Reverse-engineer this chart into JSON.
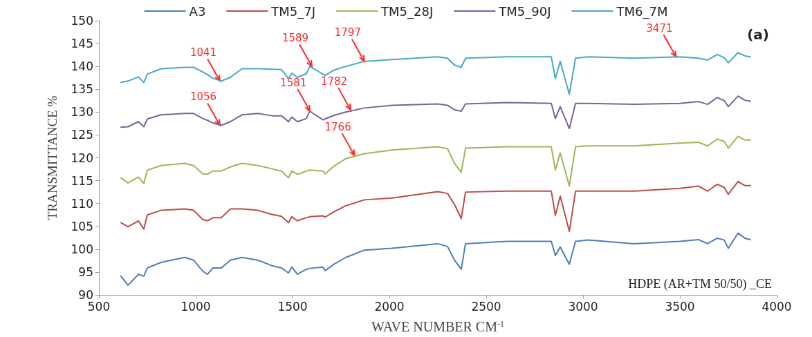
{
  "chart_data": {
    "type": "line",
    "xlabel": "WAVE NUMBER CM$^{-1}$",
    "ylabel": "TRANSMITTANCE %",
    "xlim": [
      500,
      4000
    ],
    "xticks": [
      500,
      1000,
      1500,
      2000,
      2500,
      3000,
      3500,
      4000
    ],
    "ylim": [
      90,
      150
    ],
    "yticks": [
      90,
      95,
      100,
      105,
      110,
      115,
      120,
      125,
      130,
      135,
      140,
      145,
      150
    ],
    "grid": false,
    "legend": "top",
    "marker": "none",
    "line_style": "solid",
    "x": [
      614,
      650,
      704,
      732,
      750,
      821,
      943,
      989,
      1036,
      1061,
      1089,
      1132,
      1179,
      1239,
      1321,
      1393,
      1443,
      1479,
      1496,
      1525,
      1571,
      1589,
      1657,
      1668,
      1714,
      1775,
      1871,
      2014,
      2250,
      2300,
      2336,
      2371,
      2393,
      2607,
      2836,
      2857,
      2882,
      2929,
      2961,
      3025,
      3264,
      3500,
      3596,
      3643,
      3693,
      3729,
      3750,
      3800,
      3836,
      3864
    ],
    "series": [
      {
        "name": "A3",
        "color": "#4a7ebb",
        "values": [
          94.1,
          92.1,
          94.5,
          94.1,
          95.9,
          97.1,
          98.2,
          97.6,
          95.2,
          94.5,
          95.9,
          95.9,
          97.6,
          98.2,
          97.6,
          96.4,
          95.9,
          94.8,
          96.1,
          94.5,
          95.6,
          95.8,
          96.1,
          95.3,
          96.7,
          98.2,
          99.8,
          100.2,
          101.2,
          100.6,
          97.6,
          95.6,
          101.2,
          101.7,
          101.7,
          98.6,
          100.5,
          96.7,
          101.7,
          102,
          101.2,
          101.7,
          102.1,
          101.2,
          102.4,
          102,
          100.2,
          103.5,
          102.4,
          102.1
        ]
      },
      {
        "name": "TM5_7J",
        "color": "#be4b48",
        "values": [
          105.8,
          104.9,
          106.2,
          104.4,
          107.5,
          108.5,
          108.8,
          108.5,
          106.5,
          106.2,
          106.9,
          106.9,
          108.8,
          108.8,
          108.5,
          107.6,
          107.2,
          105.8,
          107.1,
          106.2,
          106.9,
          107.1,
          107.3,
          107,
          108.2,
          109.5,
          110.8,
          111.2,
          112.6,
          112.2,
          109.8,
          106.7,
          112.5,
          112.7,
          112.7,
          107.4,
          111.6,
          103.9,
          112.7,
          112.7,
          112.7,
          113.3,
          113.8,
          112.7,
          114.2,
          113.5,
          112,
          114.8,
          113.9,
          113.9
        ]
      },
      {
        "name": "TM5_28J",
        "color": "#98b954",
        "values": [
          115.6,
          114.5,
          115.8,
          114.4,
          117.3,
          118.3,
          118.8,
          118.3,
          116.5,
          116.4,
          117.1,
          117.1,
          118,
          118.8,
          118.3,
          117.6,
          117.1,
          115.6,
          117.1,
          116.4,
          117.1,
          117.3,
          117.1,
          116.5,
          118.2,
          119.8,
          120.9,
          121.7,
          122.4,
          122,
          118.8,
          116.8,
          122.1,
          122.4,
          122.4,
          117.3,
          121.1,
          113.8,
          122.4,
          122.6,
          122.6,
          123.2,
          123.4,
          122.6,
          124.1,
          123.6,
          122.1,
          124.7,
          123.9,
          123.9
        ]
      },
      {
        "name": "TM5_90J",
        "color": "#7d60a0",
        "values": [
          126.7,
          126.8,
          127.9,
          126.8,
          128.5,
          129.4,
          129.7,
          129.7,
          128.6,
          128.2,
          127.6,
          127.1,
          127.9,
          129.4,
          129.7,
          129.2,
          129.2,
          127.9,
          128.9,
          127.9,
          128.6,
          130.2,
          128.3,
          128.5,
          129.3,
          130,
          130.9,
          131.5,
          131.8,
          131.5,
          130.5,
          130.2,
          131.8,
          132.1,
          131.9,
          128.6,
          131.2,
          126.4,
          131.9,
          131.9,
          131.7,
          131.9,
          132.3,
          131.7,
          133.2,
          132.5,
          131.2,
          133.5,
          132.6,
          132.4
        ]
      },
      {
        "name": "TM6_7M",
        "color": "#46aac5",
        "values": [
          136.5,
          136.8,
          137.7,
          136.5,
          138.3,
          139.5,
          139.8,
          139.8,
          138.8,
          138.2,
          137.4,
          136.8,
          137.6,
          139.5,
          139.5,
          139.4,
          139.3,
          137.3,
          138.5,
          137.6,
          138.4,
          140,
          138.3,
          138,
          139.2,
          140,
          141.1,
          141.5,
          142.1,
          141.8,
          140.3,
          139.8,
          141.8,
          142.1,
          142.1,
          137.3,
          141.1,
          133.9,
          141.8,
          142.1,
          141.8,
          142.1,
          141.8,
          141.4,
          142.6,
          141.9,
          140.8,
          143,
          142.3,
          142.1
        ]
      }
    ],
    "annotations": [
      "(a)",
      "HDPE (AR+TM 50/50) _CE",
      {
        "text": "1041",
        "x": 1125,
        "y": 136.8
      },
      {
        "text": "1056",
        "x": 1125,
        "y": 127.1
      },
      {
        "text": "1589",
        "x": 1600,
        "y": 140
      },
      {
        "text": "1581",
        "x": 1590,
        "y": 130.2
      },
      {
        "text": "1782",
        "x": 1800,
        "y": 130.5
      },
      {
        "text": "1797",
        "x": 1871,
        "y": 141.1
      },
      {
        "text": "1766",
        "x": 1820,
        "y": 120.5
      },
      {
        "text": "3471",
        "x": 3480,
        "y": 142.1
      }
    ]
  }
}
